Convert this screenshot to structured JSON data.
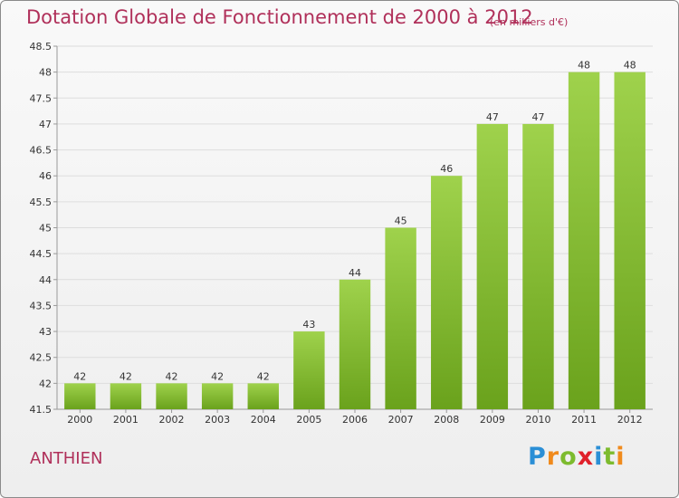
{
  "header": {
    "title": "Dotation Globale de Fonctionnement de 2000 à 2012",
    "unit": "(en milliers d'€)"
  },
  "footer": {
    "commune": "ANTHIEN",
    "logo_text": "Proxiti"
  },
  "chart_data": {
    "type": "bar",
    "title": "Dotation Globale de Fonctionnement de 2000 à 2012",
    "subtitle": "(en milliers d'€)",
    "xlabel": "",
    "ylabel": "",
    "categories": [
      "2000",
      "2001",
      "2002",
      "2003",
      "2004",
      "2005",
      "2006",
      "2007",
      "2008",
      "2009",
      "2010",
      "2011",
      "2012"
    ],
    "values": [
      42,
      42,
      42,
      42,
      42,
      43,
      44,
      45,
      46,
      47,
      47,
      48,
      48
    ],
    "data_labels": [
      "42",
      "42",
      "42",
      "42",
      "42",
      "43",
      "44",
      "45",
      "46",
      "47",
      "47",
      "48",
      "48"
    ],
    "ylim": [
      41.5,
      48.5
    ],
    "yticks": [
      41.5,
      42,
      42.5,
      43,
      43.5,
      44,
      44.5,
      45,
      45.5,
      46,
      46.5,
      47,
      47.5,
      48,
      48.5
    ],
    "ytick_labels": [
      "41.5",
      "42",
      "42.5",
      "43",
      "43.5",
      "44",
      "44.5",
      "45",
      "45.5",
      "46",
      "46.5",
      "47",
      "47.5",
      "48",
      "48.5"
    ],
    "grid": true,
    "legend": "none",
    "colors": {
      "bar_top": "#9fd24c",
      "bar_bottom": "#6aa21c",
      "grid": "#dddddd",
      "axis": "#999999",
      "title": "#b0305a"
    }
  }
}
